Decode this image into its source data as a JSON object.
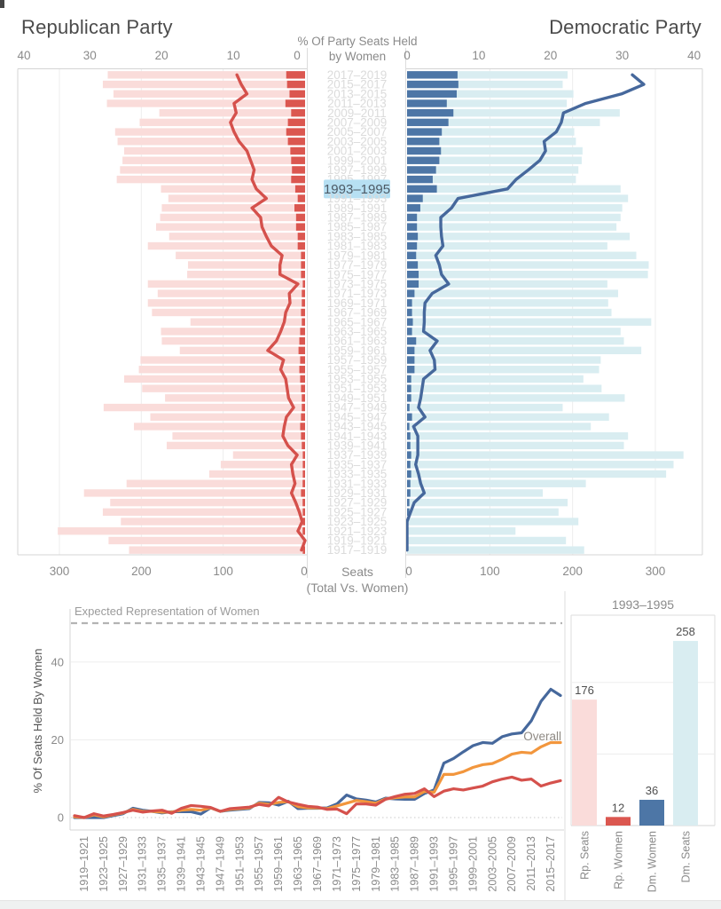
{
  "header": {
    "republican_title": "Republican Party",
    "democratic_title": "Democratic Party",
    "center_line1": "% Of Party Seats Held",
    "center_line2": "by Women"
  },
  "top_axis": {
    "pct_ticks": [
      0,
      10,
      20,
      30,
      40
    ],
    "seats_ticks": [
      0,
      100,
      200,
      300
    ],
    "bottom_label1": "Seats",
    "bottom_label2": "(Total Vs. Women)"
  },
  "bottom_left": {
    "ylabel": "% Of Seats Held By Women",
    "yticks": [
      0,
      20,
      40
    ],
    "reference_label": "Expected Representation of Women",
    "reference_value": 50,
    "overall_label": "Overall"
  },
  "panel": {
    "title": "1993–1995"
  },
  "colors": {
    "republican": "#db5750",
    "republican_light": "#fadcda",
    "republican_line": "#d5514c",
    "democratic": "#4d76a6",
    "democratic_light": "#d9edf1",
    "democratic_line": "#46689c",
    "overall": "#f2963d",
    "highlight": "#b7e0f3",
    "highlight_text": "#4d5a66",
    "reference": "#b3b3b3",
    "grid": "#ededed",
    "axis": "#d4d4d4",
    "border": "#dcdcdc",
    "text_gray": "#8a8a8a",
    "term_label": "#dbdbdb",
    "value_label": "#4f4f4f",
    "zero_dotted": "#c9c9c9"
  },
  "chart_data": {
    "terms": [
      "1917–1919",
      "1919–1921",
      "1921–1923",
      "1923–1925",
      "1925–1927",
      "1927–1929",
      "1929–1931",
      "1931–1933",
      "1933–1935",
      "1935–1937",
      "1937–1939",
      "1939–1941",
      "1941–1943",
      "1943–1945",
      "1945–1947",
      "1947–1949",
      "1949–1951",
      "1951–1953",
      "1953–1955",
      "1955–1957",
      "1957–1959",
      "1959–1961",
      "1961–1963",
      "1963–1965",
      "1965–1967",
      "1967–1969",
      "1969–1971",
      "1971–1973",
      "1973–1975",
      "1975–1977",
      "1977–1979",
      "1979–1981",
      "1981–1983",
      "1983–1985",
      "1985–1987",
      "1987–1989",
      "1989–1991",
      "1991–1993",
      "1993–1995",
      "1995–1997",
      "1997–1999",
      "1999–2001",
      "2001–2003",
      "2003–2005",
      "2005–2007",
      "2007–2009",
      "2009–2011",
      "2011–2013",
      "2013–2015",
      "2015–2017",
      "2017–2019"
    ],
    "highlighted_term": "1993–1995",
    "highlighted_term_index": 38,
    "republican": {
      "seats": [
        215,
        240,
        302,
        225,
        247,
        238,
        270,
        218,
        117,
        103,
        88,
        169,
        162,
        209,
        189,
        246,
        171,
        199,
        221,
        203,
        201,
        153,
        175,
        176,
        140,
        187,
        192,
        180,
        192,
        144,
        143,
        158,
        192,
        166,
        182,
        177,
        175,
        167,
        176,
        230,
        226,
        223,
        221,
        229,
        232,
        202,
        178,
        242,
        234,
        247,
        241
      ],
      "women": [
        1,
        0,
        3,
        1,
        2,
        3,
        5,
        3,
        2,
        2,
        1,
        4,
        5,
        6,
        5,
        4,
        4,
        5,
        6,
        7,
        6,
        8,
        7,
        6,
        4,
        5,
        4,
        4,
        2,
        5,
        5,
        5,
        9,
        9,
        11,
        11,
        13,
        9,
        12,
        17,
        16,
        17,
        18,
        21,
        23,
        21,
        17,
        24,
        19,
        22,
        23
      ],
      "pct_women": [
        0.5,
        0.0,
        1.0,
        0.4,
        0.8,
        1.3,
        1.9,
        1.4,
        1.7,
        1.9,
        1.1,
        2.4,
        3.1,
        2.9,
        2.6,
        1.6,
        2.3,
        2.5,
        2.7,
        3.4,
        3.0,
        5.2,
        4.0,
        3.4,
        2.9,
        2.7,
        2.1,
        2.2,
        1.0,
        3.5,
        3.5,
        3.2,
        4.7,
        5.4,
        6.0,
        6.2,
        7.4,
        5.4,
        6.8,
        7.4,
        7.1,
        7.6,
        8.1,
        9.2,
        9.9,
        10.4,
        9.6,
        9.9,
        8.1,
        8.9,
        9.5
      ]
    },
    "democratic": {
      "seats": [
        214,
        192,
        131,
        207,
        183,
        194,
        164,
        216,
        313,
        322,
        334,
        262,
        267,
        222,
        244,
        188,
        263,
        235,
        213,
        232,
        234,
        283,
        262,
        258,
        295,
        247,
        243,
        255,
        242,
        291,
        292,
        277,
        242,
        269,
        253,
        258,
        260,
        267,
        258,
        204,
        207,
        211,
        212,
        204,
        202,
        233,
        257,
        193,
        201,
        188,
        194
      ],
      "women": [
        0,
        0,
        0,
        0,
        1,
        2,
        4,
        4,
        5,
        4,
        5,
        4,
        4,
        2,
        6,
        3,
        5,
        5,
        5,
        9,
        9,
        9,
        11,
        6,
        7,
        6,
        6,
        9,
        14,
        14,
        13,
        11,
        12,
        13,
        12,
        12,
        16,
        19,
        36,
        31,
        35,
        39,
        41,
        39,
        42,
        50,
        56,
        48,
        60,
        62,
        61
      ],
      "pct_women": [
        0.0,
        0.0,
        0.0,
        0.0,
        0.5,
        1.0,
        2.4,
        1.9,
        1.6,
        1.2,
        1.5,
        1.5,
        1.5,
        0.9,
        2.5,
        1.6,
        1.9,
        2.1,
        2.3,
        3.9,
        3.8,
        3.2,
        4.2,
        2.3,
        2.4,
        2.4,
        2.5,
        3.5,
        5.8,
        4.8,
        4.5,
        4.0,
        5.0,
        4.8,
        4.7,
        4.7,
        6.2,
        7.1,
        14.0,
        15.2,
        16.9,
        18.5,
        19.3,
        19.1,
        20.8,
        21.5,
        21.8,
        24.9,
        29.9,
        33.0,
        31.4
      ]
    },
    "overall_pct_women": [
      0.2,
      0.0,
      0.7,
      0.2,
      0.7,
      1.2,
      2.1,
      1.6,
      1.6,
      1.4,
      1.4,
      1.9,
      2.1,
      1.9,
      2.5,
      1.6,
      2.1,
      2.3,
      2.5,
      3.7,
      3.4,
      3.9,
      4.1,
      2.8,
      2.5,
      2.5,
      2.3,
      3.0,
      3.7,
      4.4,
      4.1,
      3.7,
      4.8,
      5.1,
      5.3,
      5.3,
      6.7,
      6.5,
      11.1,
      11.1,
      11.8,
      12.9,
      13.6,
      13.9,
      15.0,
      16.3,
      16.8,
      16.6,
      18.2,
      19.3,
      19.3
    ],
    "charts": [
      {
        "id": "party-terms-butterfly",
        "type": "bar",
        "orientation": "horizontal",
        "seats_axis_range": [
          0,
          300
        ],
        "pct_axis_range": [
          0,
          40
        ],
        "series_names": [
          "Republican Total Seats",
          "Republican Women Seats",
          "Democratic Total Seats",
          "Democratic Women Seats",
          "Republican % Women (line)",
          "Democratic % Women (line)"
        ]
      },
      {
        "id": "pct-seats-over-time",
        "type": "line",
        "ylabel": "% Of Seats Held By Women",
        "yticks": [
          0,
          20,
          40
        ],
        "reference_line": {
          "value": 50,
          "label": "Expected Representation of Women"
        },
        "series_names": [
          "Democratic",
          "Republican",
          "Overall"
        ],
        "x_labels_every_other_from": "1919–1921"
      },
      {
        "id": "term-detail-1993-1995",
        "type": "bar",
        "title": "1993–1995",
        "categories": [
          "Rp. Seats",
          "Rp. Women",
          "Dm. Women",
          "Dm. Seats"
        ],
        "values": [
          176,
          12,
          36,
          258
        ]
      }
    ]
  }
}
